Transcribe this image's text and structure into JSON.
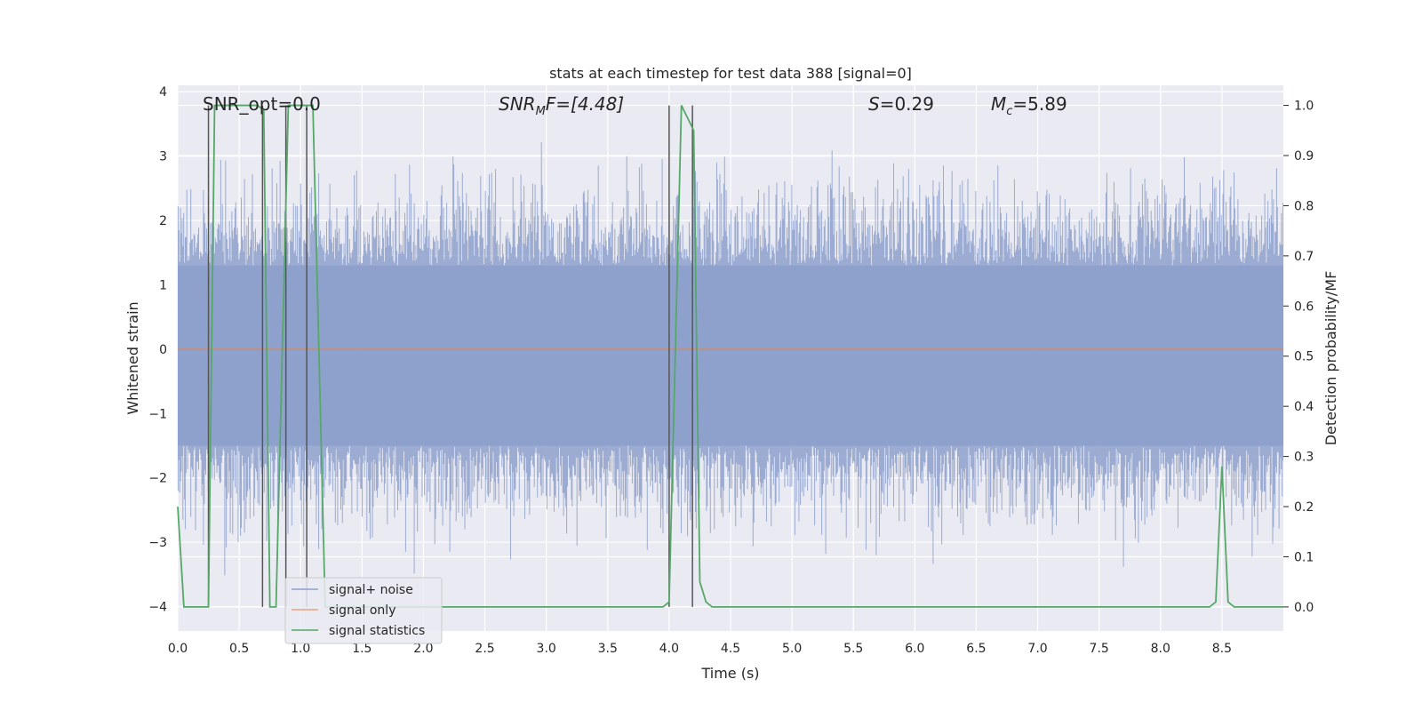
{
  "chart_data": {
    "type": "line",
    "title": "stats at each timestep for test data 388 [signal=0]",
    "xlabel": "Time (s)",
    "ylabel_left": "Whitened strain",
    "ylabel_right": "Detection probability/MF",
    "xlim": [
      0,
      9.0
    ],
    "ylim_left": [
      -4.38,
      4.1
    ],
    "ylim_right": [
      -0.048,
      1.04
    ],
    "x_ticks": [
      0.0,
      0.5,
      1.0,
      1.5,
      2.0,
      2.5,
      3.0,
      3.5,
      4.0,
      4.5,
      5.0,
      5.5,
      6.0,
      6.5,
      7.0,
      7.5,
      8.0,
      8.5
    ],
    "x_tick_labels": [
      "0.0",
      "0.5",
      "1.0",
      "1.5",
      "2.0",
      "2.5",
      "3.0",
      "3.5",
      "4.0",
      "4.5",
      "5.0",
      "5.5",
      "6.0",
      "6.5",
      "7.0",
      "7.5",
      "8.0",
      "8.5"
    ],
    "y_left_ticks": [
      4,
      3,
      2,
      1,
      0,
      -1,
      -2,
      -3,
      -4
    ],
    "y_left_tick_labels": [
      "4",
      "3",
      "2",
      "1",
      "0",
      "−1",
      "−2",
      "−3",
      "−4"
    ],
    "y_right_ticks": [
      1.0,
      0.9,
      0.8,
      0.7,
      0.6,
      0.5,
      0.4,
      0.3,
      0.2,
      0.1,
      0.0
    ],
    "y_right_tick_labels": [
      "1.0",
      "0.9",
      "0.8",
      "0.7",
      "0.6",
      "0.5",
      "0.4",
      "0.3",
      "0.2",
      "0.1",
      "0.0"
    ],
    "grid": true,
    "legend_position": "lower-left",
    "annotations": {
      "snr_opt": "SNR_opt=0.0",
      "snr_mf_main": "SNR",
      "snr_mf_sub": "M",
      "snr_mf_rest": "F=[4.48]",
      "s_main": "S",
      "s_rest": "=0.29",
      "mc_main": "M",
      "mc_sub": "c",
      "mc_rest": "=5.89"
    },
    "series": [
      {
        "name": "signal+ noise",
        "color": "#8da0cb",
        "axis": "left",
        "description_values": "whitened noise, approx uniform envelope between -3.8 and 3.5, 9 s at 2048 Hz",
        "envelope_band": [
          -1.5,
          1.3
        ],
        "spike_range": [
          -3.8,
          3.5
        ]
      },
      {
        "name": "signal only",
        "color": "#dd8452",
        "axis": "left",
        "x": [
          0.0,
          9.0
        ],
        "y": [
          0.0,
          0.0
        ]
      },
      {
        "name": "signal statistics",
        "color": "#55a868",
        "axis": "right",
        "x": [
          0.0,
          0.05,
          0.25,
          0.3,
          0.65,
          0.7,
          0.75,
          0.8,
          0.9,
          1.1,
          1.2,
          1.3,
          3.95,
          4.0,
          4.1,
          4.2,
          4.25,
          4.3,
          4.35,
          8.4,
          8.45,
          8.5,
          8.55,
          8.6,
          9.0
        ],
        "y": [
          0.2,
          0.0,
          0.0,
          1.0,
          1.0,
          0.99,
          0.0,
          0.0,
          1.0,
          1.0,
          0.0,
          0.0,
          0.0,
          0.01,
          1.0,
          0.95,
          0.05,
          0.01,
          0.0,
          0.0,
          0.01,
          0.28,
          0.01,
          0.0,
          0.0
        ]
      }
    ],
    "vlines": [
      0.25,
      0.69,
      0.88,
      1.05,
      4.0,
      4.19
    ],
    "vlines_range": [
      0.0,
      1.0
    ]
  }
}
